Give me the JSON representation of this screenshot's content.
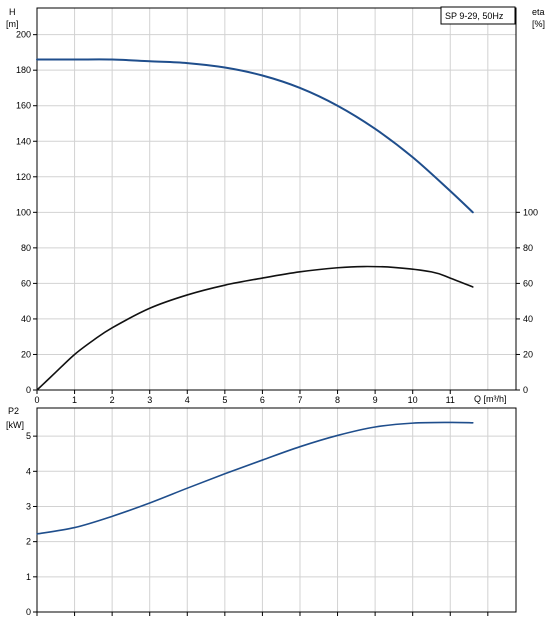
{
  "chart_data": [
    {
      "type": "line",
      "legend_box": "SP 9-29, 50Hz",
      "legend_position": "top-right",
      "grid": true,
      "xlabel": "Q [m³/h]",
      "xlim": [
        0,
        12.75
      ],
      "xticks": [
        0,
        1,
        2,
        3,
        4,
        5,
        6,
        7,
        8,
        9,
        10,
        11
      ],
      "y_left": {
        "label_line1": "H",
        "label_line2": "[m]",
        "lim": [
          0,
          215
        ],
        "ticks": [
          0,
          20,
          40,
          60,
          80,
          100,
          120,
          140,
          160,
          180,
          200
        ]
      },
      "y_right": {
        "label_line1": "eta",
        "label_line2": "[%]",
        "lim": [
          0,
          215
        ],
        "ticks": [
          0,
          20,
          40,
          60,
          80,
          100
        ]
      },
      "series": [
        {
          "axis": "left",
          "color": "#1f4e8c",
          "x": [
            0,
            1,
            2,
            3,
            4,
            5,
            6,
            7,
            8,
            9,
            10,
            11,
            11.6
          ],
          "values": [
            186,
            186,
            186,
            185,
            184,
            181.5,
            177,
            170,
            160,
            147,
            131,
            112,
            100
          ]
        },
        {
          "axis": "right",
          "color": "#111111",
          "x": [
            0,
            0.25,
            0.5,
            1,
            1.5,
            2,
            3,
            4,
            5,
            6,
            7,
            8,
            8.7,
            9.5,
            10.5,
            11,
            11.6
          ],
          "values": [
            0,
            5,
            10,
            20,
            28,
            35,
            46,
            53.5,
            59,
            63,
            66.5,
            68.8,
            69.5,
            69,
            66.5,
            63,
            58
          ]
        }
      ]
    },
    {
      "type": "line",
      "grid": true,
      "xlim": [
        0,
        12.75
      ],
      "y_left": {
        "label_line1": "P2",
        "label_line2": "[kW]",
        "lim": [
          0,
          5.8
        ],
        "ticks": [
          0,
          1,
          2,
          3,
          4,
          5
        ]
      },
      "series": [
        {
          "axis": "left",
          "color": "#1f4e8c",
          "x": [
            0,
            1,
            2,
            3,
            4,
            5,
            6,
            7,
            8,
            9,
            10,
            11,
            11.6
          ],
          "values": [
            2.22,
            2.4,
            2.72,
            3.1,
            3.52,
            3.93,
            4.32,
            4.7,
            5.02,
            5.26,
            5.37,
            5.39,
            5.38
          ]
        }
      ]
    }
  ]
}
